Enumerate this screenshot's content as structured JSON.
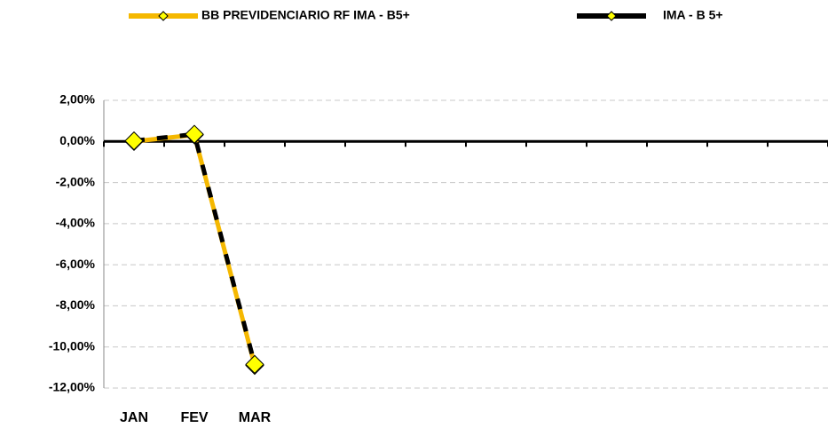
{
  "chart_data": {
    "type": "line",
    "categories": [
      "JAN",
      "FEV",
      "MAR",
      null,
      null,
      null,
      null,
      null,
      null,
      null,
      null,
      null
    ],
    "series": [
      {
        "name": "BB PREVIDENCIARIO RF IMA - B5+",
        "color": "#f5b800",
        "marker_color": "#ffff00",
        "values": [
          0,
          0.32,
          -10.9,
          null,
          null,
          null,
          null,
          null,
          null,
          null,
          null,
          null
        ]
      },
      {
        "name": "IMA - B 5+",
        "color": "#000000",
        "marker_color": "#ffff00",
        "values": [
          0.03,
          0.35,
          -10.85,
          null,
          null,
          null,
          null,
          null,
          null,
          null,
          null,
          null
        ]
      }
    ],
    "ylim": [
      -12,
      2
    ],
    "yticks": [
      {
        "value": -12,
        "label": "-12,00%"
      },
      {
        "value": -10,
        "label": "-10,00%"
      },
      {
        "value": -8,
        "label": "-8,00%"
      },
      {
        "value": -6,
        "label": "-6,00%"
      },
      {
        "value": -4,
        "label": "-4,00%"
      },
      {
        "value": -2,
        "label": "-2,00%"
      },
      {
        "value": 0,
        "label": "0,00%"
      },
      {
        "value": 2,
        "label": "2,00%"
      }
    ],
    "grid": true
  }
}
